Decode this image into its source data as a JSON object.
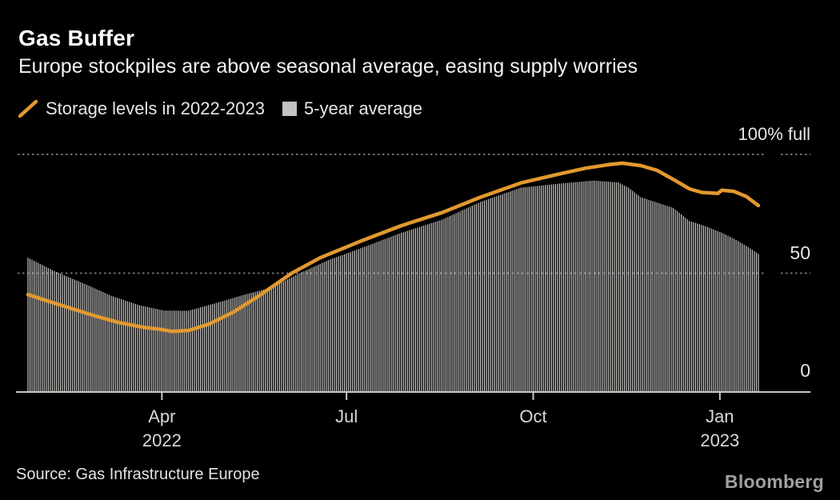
{
  "header": {
    "title": "Gas Buffer",
    "subtitle": "Europe stockpiles are above seasonal average, easing supply worries"
  },
  "legend": {
    "items": [
      {
        "swatch": "orange-slash-icon",
        "label": "Storage levels in 2022-2023"
      },
      {
        "swatch": "gray-square-icon",
        "label": "5-year average"
      }
    ]
  },
  "axes": {
    "y_top_label": "100% full",
    "y_mid_label": "50",
    "y_zero_label": "0",
    "y_gridlines_pct": [
      100,
      50
    ],
    "x_ticks": [
      {
        "label": "Apr",
        "sublabel": "2022",
        "date": "2022-04-01"
      },
      {
        "label": "Jul",
        "date": "2022-07-01"
      },
      {
        "label": "Oct",
        "date": "2022-10-01"
      },
      {
        "label": "Jan",
        "sublabel": "2023",
        "date": "2023-01-01"
      }
    ]
  },
  "source": "Source: Gas Infrastructure Europe",
  "logo": "Bloomberg",
  "colors": {
    "background": "#000000",
    "accent_orange": "#E2992F",
    "bar_gray": "#CBCAC8",
    "grid_gray": "#6F6F6F",
    "axis_gray": "#C9C7C4",
    "text_primary": "#FFFFFF",
    "text_secondary": "#E8E6E2",
    "logo_gray": "#A0A0A0"
  },
  "chart_data": {
    "type": "line+bar",
    "title": "Gas Buffer",
    "ylabel": "% full",
    "ylim": [
      0,
      100
    ],
    "x_start": "2022-01-25",
    "x_end": "2023-01-20",
    "series": [
      {
        "name": "Storage levels in 2022-2023",
        "type": "line",
        "color": "#E2992F",
        "points": [
          [
            "2022-01-25",
            41.0
          ],
          [
            "2022-02-04",
            38.2
          ],
          [
            "2022-02-16",
            35.0
          ],
          [
            "2022-02-28",
            31.8
          ],
          [
            "2022-03-11",
            29.2
          ],
          [
            "2022-03-23",
            27.2
          ],
          [
            "2022-04-01",
            26.3
          ],
          [
            "2022-04-06",
            25.5
          ],
          [
            "2022-04-14",
            25.9
          ],
          [
            "2022-04-24",
            28.5
          ],
          [
            "2022-05-06",
            33.5
          ],
          [
            "2022-05-18",
            40.0
          ],
          [
            "2022-06-04",
            50.0
          ],
          [
            "2022-06-18",
            56.5
          ],
          [
            "2022-07-08",
            63.5
          ],
          [
            "2022-07-28",
            70.0
          ],
          [
            "2022-08-17",
            75.5
          ],
          [
            "2022-09-05",
            82.0
          ],
          [
            "2022-09-25",
            88.0
          ],
          [
            "2022-10-15",
            92.0
          ],
          [
            "2022-10-27",
            94.2
          ],
          [
            "2022-11-08",
            95.8
          ],
          [
            "2022-11-14",
            96.3
          ],
          [
            "2022-11-23",
            95.3
          ],
          [
            "2022-12-01",
            93.3
          ],
          [
            "2022-12-09",
            89.5
          ],
          [
            "2022-12-17",
            85.5
          ],
          [
            "2022-12-23",
            84.0
          ],
          [
            "2022-12-31",
            83.6
          ],
          [
            "2023-01-02",
            84.9
          ],
          [
            "2023-01-08",
            84.4
          ],
          [
            "2023-01-14",
            82.3
          ],
          [
            "2023-01-20",
            78.5
          ]
        ]
      },
      {
        "name": "5-year average",
        "type": "bar",
        "color": "#CBCAC8",
        "bar_interval_days": 1,
        "points": [
          [
            "2022-01-25",
            56.5
          ],
          [
            "2022-02-08",
            50.5
          ],
          [
            "2022-02-22",
            45.5
          ],
          [
            "2022-03-07",
            40.5
          ],
          [
            "2022-03-21",
            36.5
          ],
          [
            "2022-04-02",
            34.3
          ],
          [
            "2022-04-14",
            34.2
          ],
          [
            "2022-04-28",
            37.5
          ],
          [
            "2022-05-11",
            40.8
          ],
          [
            "2022-05-25",
            44.0
          ],
          [
            "2022-06-08",
            50.0
          ],
          [
            "2022-06-22",
            55.5
          ],
          [
            "2022-07-08",
            60.5
          ],
          [
            "2022-07-28",
            67.0
          ],
          [
            "2022-08-17",
            72.5
          ],
          [
            "2022-09-05",
            80.0
          ],
          [
            "2022-09-25",
            86.0
          ],
          [
            "2022-10-15",
            87.8
          ],
          [
            "2022-10-31",
            89.0
          ],
          [
            "2022-11-12",
            88.2
          ],
          [
            "2022-11-17",
            86.0
          ],
          [
            "2022-11-23",
            82.0
          ],
          [
            "2022-12-09",
            77.5
          ],
          [
            "2022-12-17",
            72.0
          ],
          [
            "2022-12-25",
            69.8
          ],
          [
            "2023-01-02",
            67.0
          ],
          [
            "2023-01-08",
            64.5
          ],
          [
            "2023-01-14",
            61.5
          ],
          [
            "2023-01-20",
            58.2
          ]
        ]
      }
    ]
  }
}
